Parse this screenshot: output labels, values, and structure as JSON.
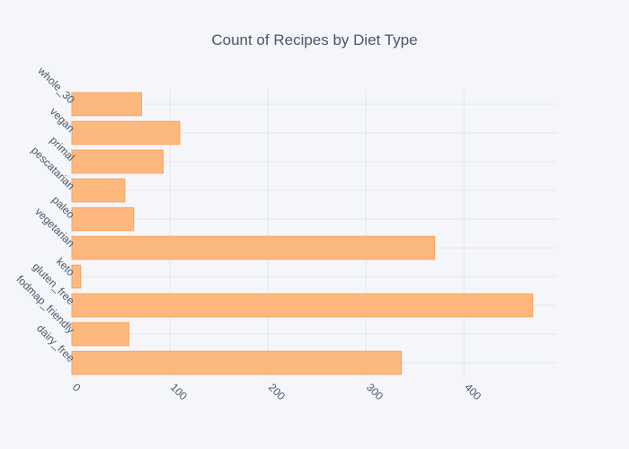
{
  "chart_data": {
    "type": "bar",
    "orientation": "horizontal",
    "title": "Count of Recipes by Diet Type",
    "xlabel": "",
    "ylabel": "",
    "categories": [
      "dairy_free",
      "fodmap_friendly",
      "gluten_free",
      "keto",
      "vegetarian",
      "paleo",
      "pescatarian",
      "primal",
      "vegan",
      "whole_30"
    ],
    "values": [
      336,
      58,
      470,
      9,
      370,
      63,
      54,
      93,
      110,
      71
    ],
    "x_ticks": [
      0,
      100,
      200,
      300,
      400
    ],
    "xlim": [
      0,
      495
    ],
    "grid": true,
    "legend": "none",
    "bar_color": "#fdb97d",
    "bar_edge_color": "#f7a05a",
    "grid_color": "#e3e5ee",
    "background_color": "#f5f6fa",
    "text_color": "#4b5567"
  }
}
